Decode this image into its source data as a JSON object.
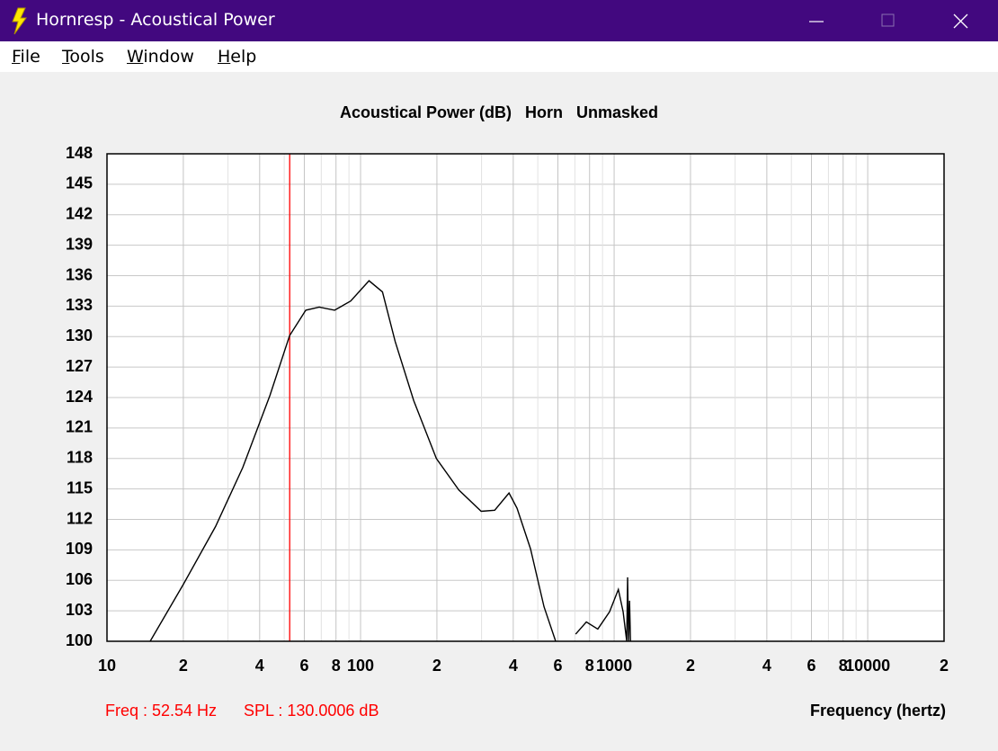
{
  "window": {
    "title": "Hornresp - Acoustical Power"
  },
  "menu": [
    "File",
    "Tools",
    "Window",
    "Help"
  ],
  "chart_data": {
    "type": "line",
    "title": "Acoustical Power (dB)   Horn   Unmasked",
    "xlabel": "Frequency (hertz)",
    "xscale": "log",
    "xlim": [
      10,
      20000
    ],
    "ylim": [
      100,
      148
    ],
    "grid": true,
    "color": "#000000",
    "xticks": [
      10,
      {
        "value": 20,
        "label": "2"
      },
      {
        "value": 30,
        "label": null
      },
      {
        "value": 40,
        "label": "4"
      },
      {
        "value": 50,
        "label": null
      },
      {
        "value": 60,
        "label": "6"
      },
      {
        "value": 70,
        "label": null
      },
      {
        "value": 80,
        "label": "8"
      },
      {
        "value": 90,
        "label": null
      },
      100,
      {
        "value": 200,
        "label": "2"
      },
      {
        "value": 300,
        "label": null
      },
      {
        "value": 400,
        "label": "4"
      },
      {
        "value": 500,
        "label": null
      },
      {
        "value": 600,
        "label": "6"
      },
      {
        "value": 700,
        "label": null
      },
      {
        "value": 800,
        "label": "8"
      },
      {
        "value": 900,
        "label": null
      },
      1000,
      {
        "value": 2000,
        "label": "2"
      },
      {
        "value": 3000,
        "label": null
      },
      {
        "value": 4000,
        "label": "4"
      },
      {
        "value": 5000,
        "label": null
      },
      {
        "value": 6000,
        "label": "6"
      },
      {
        "value": 7000,
        "label": null
      },
      {
        "value": 8000,
        "label": "8"
      },
      {
        "value": 9000,
        "label": null
      },
      10000,
      {
        "value": 20000,
        "label": "2"
      }
    ],
    "yticks": [
      100,
      103,
      106,
      109,
      112,
      115,
      118,
      121,
      124,
      127,
      130,
      133,
      136,
      139,
      142,
      145,
      148
    ],
    "x": [
      14.8,
      20,
      26.8,
      34.3,
      43.9,
      52.5,
      60.8,
      68.7,
      79,
      91.4,
      108,
      122,
      137,
      162,
      199,
      244,
      299,
      338,
      385,
      414,
      468,
      529,
      588,
      650,
      705,
      777,
      862,
      959,
      1039,
      1085,
      1121,
      1130,
      1140,
      1150,
      1160
    ],
    "values": [
      100,
      105.6,
      111.3,
      117.1,
      124.2,
      130.1,
      132.6,
      132.9,
      132.6,
      133.5,
      135.5,
      134.4,
      129.5,
      123.7,
      118,
      114.9,
      112.8,
      112.9,
      114.6,
      113.1,
      109.1,
      103.4,
      100,
      null,
      100.7,
      101.9,
      101.2,
      102.9,
      105.1,
      102.9,
      100,
      106.3,
      100,
      104,
      100
    ],
    "cursor": {
      "x": 52.54,
      "y": 130.0006,
      "color": "#ff0000",
      "freq_label": "Freq : 52.54 Hz",
      "spl_label": "SPL : 130.0006 dB"
    }
  }
}
